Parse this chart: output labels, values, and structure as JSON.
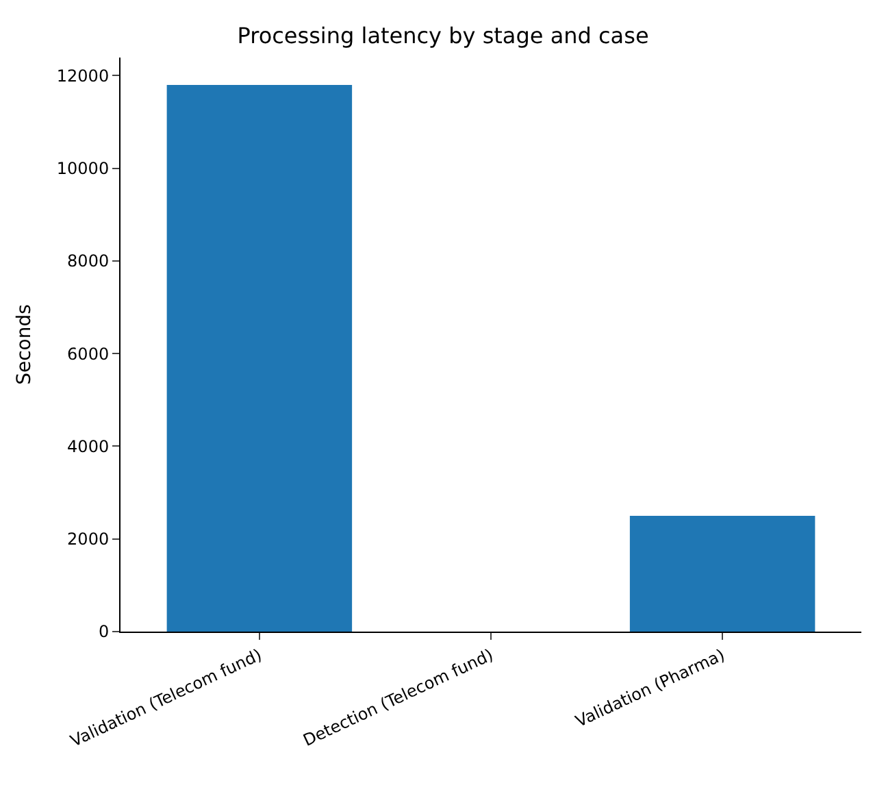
{
  "chart_data": {
    "type": "bar",
    "title": "Processing latency by stage and case",
    "ylabel": "Seconds",
    "categories": [
      "Validation (Telecom fund)",
      "Detection (Telecom fund)",
      "Validation (Pharma)"
    ],
    "values": [
      11800,
      0,
      2500
    ],
    "color": "#1f77b4",
    "ylim": [
      0,
      12390
    ],
    "yticks": [
      0,
      2000,
      4000,
      6000,
      8000,
      10000,
      12000
    ]
  }
}
